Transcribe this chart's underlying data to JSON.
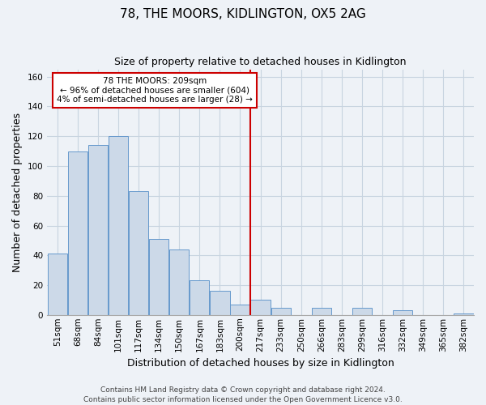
{
  "title": "78, THE MOORS, KIDLINGTON, OX5 2AG",
  "subtitle": "Size of property relative to detached houses in Kidlington",
  "xlabel": "Distribution of detached houses by size in Kidlington",
  "ylabel": "Number of detached properties",
  "bar_labels": [
    "51sqm",
    "68sqm",
    "84sqm",
    "101sqm",
    "117sqm",
    "134sqm",
    "150sqm",
    "167sqm",
    "183sqm",
    "200sqm",
    "217sqm",
    "233sqm",
    "250sqm",
    "266sqm",
    "283sqm",
    "299sqm",
    "316sqm",
    "332sqm",
    "349sqm",
    "365sqm",
    "382sqm"
  ],
  "bar_values": [
    41,
    110,
    114,
    120,
    83,
    51,
    44,
    23,
    16,
    7,
    10,
    5,
    0,
    5,
    0,
    5,
    0,
    3,
    0,
    0,
    1
  ],
  "bar_color": "#ccd9e8",
  "bar_edge_color": "#6699cc",
  "vline_color": "#cc0000",
  "annotation_title": "78 THE MOORS: 209sqm",
  "annotation_line1": "← 96% of detached houses are smaller (604)",
  "annotation_line2": "4% of semi-detached houses are larger (28) →",
  "annotation_box_edge": "#cc0000",
  "annotation_box_bg": "white",
  "ylim": [
    0,
    165
  ],
  "yticks": [
    0,
    20,
    40,
    60,
    80,
    100,
    120,
    140,
    160
  ],
  "background_color": "#eef2f7",
  "plot_bg_color": "#eef2f7",
  "grid_color": "#c8d4e0",
  "title_fontsize": 11,
  "subtitle_fontsize": 9,
  "axis_label_fontsize": 9,
  "tick_fontsize": 7.5,
  "footer_fontsize": 6.5,
  "footer_line1": "Contains HM Land Registry data © Crown copyright and database right 2024.",
  "footer_line2": "Contains public sector information licensed under the Open Government Licence v3.0."
}
